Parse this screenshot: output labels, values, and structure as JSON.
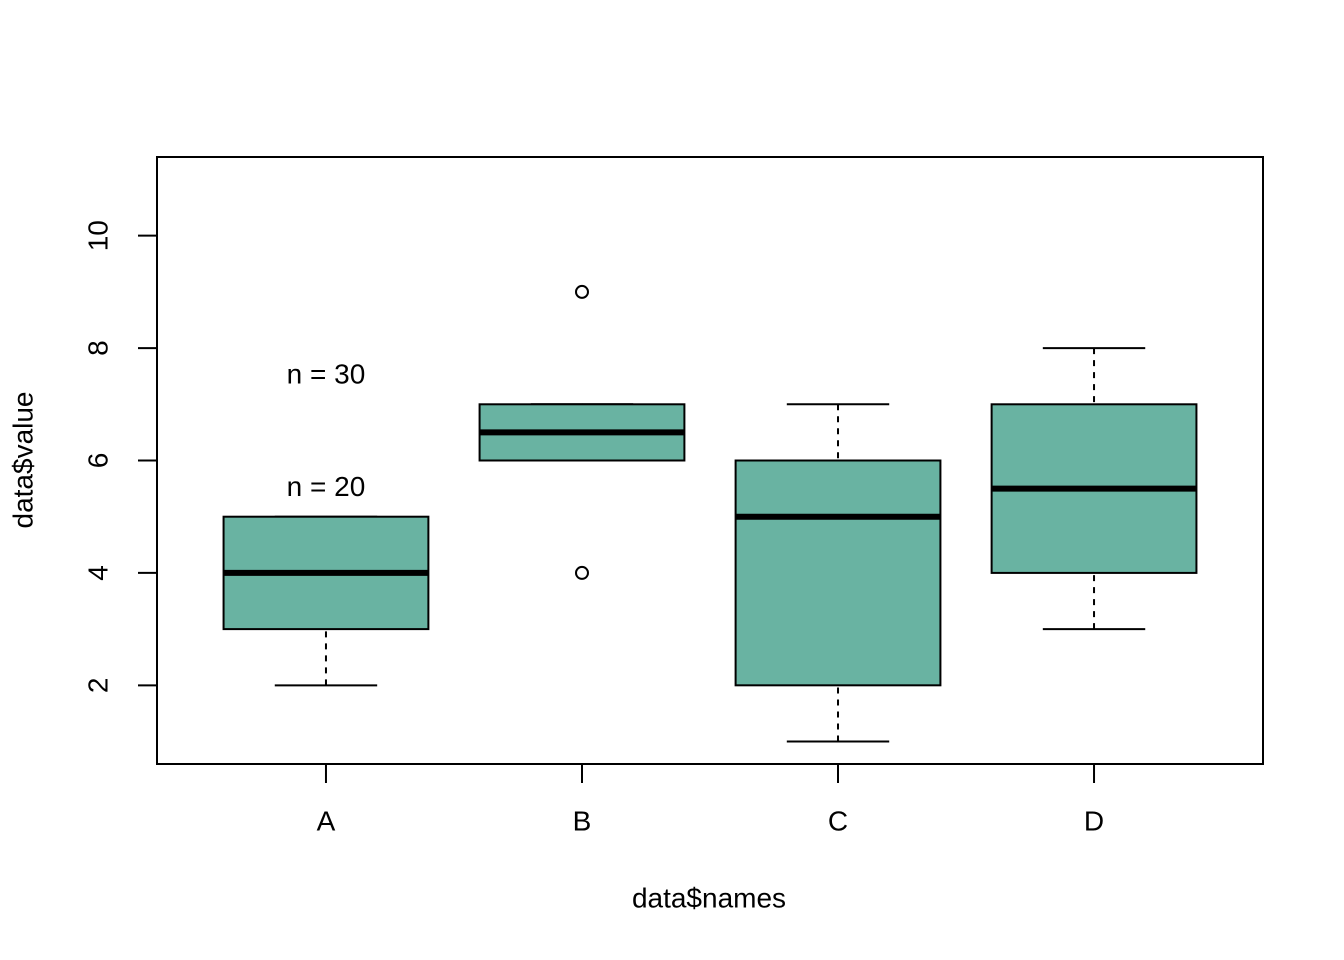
{
  "chart_data": {
    "type": "boxplot",
    "xlabel": "data$names",
    "ylabel": "data$value",
    "categories": [
      "A",
      "B",
      "C",
      "D"
    ],
    "color": "#69b3a2",
    "series": [
      {
        "name": "data$value",
        "whisker_low": [
          2,
          6,
          1,
          3
        ],
        "q1": [
          3,
          6,
          2,
          4
        ],
        "median": [
          4,
          6.5,
          5,
          5.5
        ],
        "q3": [
          5,
          7,
          6,
          7
        ],
        "whisker_high": [
          5,
          7,
          7,
          8
        ],
        "outliers": [
          [],
          [
            9,
            4
          ],
          [],
          []
        ]
      }
    ],
    "ylim": [
      0.6,
      11.4
    ],
    "yticks": [
      2,
      4,
      6,
      8,
      10
    ],
    "annotations": [
      {
        "text": "n = 30",
        "x": 1,
        "y": 7.5
      },
      {
        "text": "n = 20",
        "x": 1,
        "y": 5.5
      }
    ]
  }
}
